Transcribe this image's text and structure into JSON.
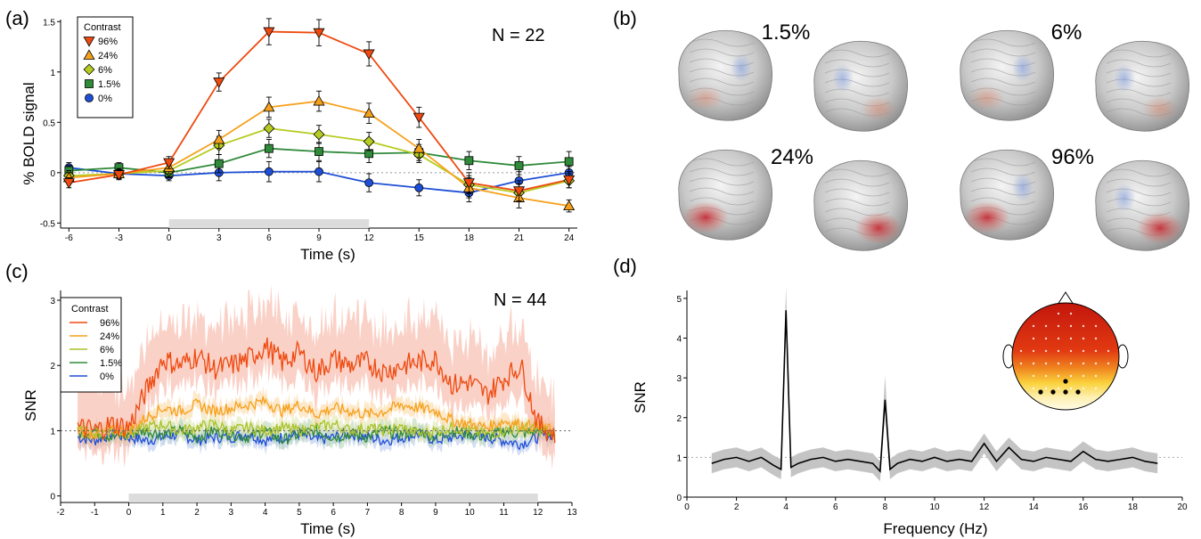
{
  "panels": {
    "a": {
      "label": "(a)",
      "n_label": "N = 22",
      "legend_title": "Contrast",
      "ylabel": "% BOLD signal",
      "xlabel": "Time (s)"
    },
    "b": {
      "label": "(b)",
      "contrast_labels": [
        "1.5%",
        "6%",
        "24%",
        "96%"
      ]
    },
    "c": {
      "label": "(c)",
      "n_label": "N = 44",
      "legend_title": "Contrast",
      "ylabel": "SNR",
      "xlabel": "Time (s)"
    },
    "d": {
      "label": "(d)",
      "ylabel": "SNR",
      "xlabel": "Frequency (Hz)"
    }
  },
  "chart_data": [
    {
      "panel": "a",
      "type": "line",
      "title": "",
      "xlabel": "Time (s)",
      "ylabel": "% BOLD signal",
      "xlim": [
        -6.5,
        24.5
      ],
      "ylim": [
        -0.55,
        1.52
      ],
      "xticks": [
        -6,
        -3,
        0,
        3,
        6,
        9,
        12,
        15,
        18,
        21,
        24
      ],
      "yticks": [
        -0.5,
        0,
        0.5,
        1,
        1.5
      ],
      "stimulus_period": [
        0,
        12
      ],
      "x": [
        -6,
        -3,
        0,
        3,
        6,
        9,
        12,
        15,
        18,
        21,
        24
      ],
      "series": [
        {
          "name": "96%",
          "color": "#ee4a10",
          "marker": "triangle-down",
          "values": [
            -0.1,
            -0.02,
            0.1,
            0.9,
            1.4,
            1.39,
            1.18,
            0.55,
            -0.1,
            -0.18,
            -0.07
          ],
          "errors": [
            0.05,
            0.05,
            0.06,
            0.09,
            0.13,
            0.13,
            0.12,
            0.1,
            0.1,
            0.1,
            0.08
          ]
        },
        {
          "name": "24%",
          "color": "#f6a11c",
          "marker": "triangle-up",
          "values": [
            -0.05,
            -0.01,
            0.05,
            0.33,
            0.65,
            0.71,
            0.59,
            0.24,
            -0.15,
            -0.25,
            -0.33
          ],
          "errors": [
            0.05,
            0.05,
            0.06,
            0.09,
            0.1,
            0.1,
            0.1,
            0.09,
            0.1,
            0.1,
            0.06
          ]
        },
        {
          "name": "6%",
          "color": "#b7cc22",
          "marker": "diamond",
          "values": [
            -0.03,
            -0.01,
            0.02,
            0.27,
            0.44,
            0.38,
            0.31,
            0.18,
            -0.12,
            -0.2,
            -0.08
          ],
          "errors": [
            0.05,
            0.05,
            0.06,
            0.09,
            0.09,
            0.09,
            0.09,
            0.08,
            0.09,
            0.09,
            0.07
          ]
        },
        {
          "name": "1.5%",
          "color": "#2f8a3a",
          "marker": "square",
          "values": [
            0.02,
            0.05,
            0.0,
            0.09,
            0.24,
            0.21,
            0.19,
            0.2,
            0.12,
            0.07,
            0.11
          ],
          "errors": [
            0.05,
            0.05,
            0.05,
            0.09,
            0.09,
            0.09,
            0.09,
            0.08,
            0.09,
            0.09,
            0.1
          ]
        },
        {
          "name": "0%",
          "color": "#1f4fd6",
          "marker": "circle",
          "values": [
            0.05,
            -0.01,
            -0.03,
            0.0,
            0.01,
            0.01,
            -0.1,
            -0.15,
            -0.2,
            -0.08,
            0.0
          ],
          "errors": [
            0.05,
            0.05,
            0.05,
            0.08,
            0.1,
            0.1,
            0.09,
            0.08,
            0.09,
            0.09,
            0.06
          ]
        }
      ]
    },
    {
      "panel": "c",
      "type": "line",
      "title": "",
      "xlabel": "Time (s)",
      "ylabel": "SNR",
      "xlim": [
        -2,
        13
      ],
      "ylim": [
        -0.1,
        3.15
      ],
      "xticks": [
        -2,
        -1,
        0,
        1,
        2,
        3,
        4,
        5,
        6,
        7,
        8,
        9,
        10,
        11,
        12,
        13
      ],
      "yticks": [
        0,
        1,
        2,
        3
      ],
      "stimulus_period": [
        0,
        12
      ],
      "x": [
        -1.5,
        -1,
        -0.5,
        0,
        0.5,
        1,
        1.5,
        2,
        2.5,
        3,
        3.5,
        4,
        4.5,
        5,
        5.5,
        6,
        6.5,
        7,
        7.5,
        8,
        8.5,
        9,
        9.5,
        10,
        10.5,
        11,
        11.5,
        12,
        12.5
      ],
      "series": [
        {
          "name": "96%",
          "color": "#ee4a10",
          "values": [
            1.05,
            1.0,
            1.1,
            1.05,
            1.6,
            2.1,
            2.0,
            2.15,
            1.95,
            2.0,
            2.1,
            2.3,
            2.05,
            2.2,
            1.9,
            2.1,
            2.0,
            2.05,
            1.9,
            2.0,
            2.05,
            2.1,
            1.7,
            1.75,
            1.55,
            1.8,
            2.0,
            1.1,
            0.95
          ],
          "band": 0.4
        },
        {
          "name": "24%",
          "color": "#f6a11c",
          "values": [
            1.0,
            0.95,
            1.0,
            1.0,
            1.2,
            1.35,
            1.3,
            1.4,
            1.3,
            1.35,
            1.4,
            1.45,
            1.3,
            1.4,
            1.25,
            1.35,
            1.3,
            1.25,
            1.3,
            1.4,
            1.35,
            1.3,
            1.15,
            1.1,
            1.05,
            1.15,
            1.1,
            1.05,
            1.0
          ],
          "band": 0.12
        },
        {
          "name": "6%",
          "color": "#a9c22a",
          "values": [
            1.0,
            0.95,
            1.0,
            0.95,
            1.05,
            1.1,
            1.0,
            1.05,
            1.1,
            1.0,
            1.05,
            1.0,
            1.05,
            1.0,
            1.05,
            1.1,
            1.0,
            1.05,
            1.0,
            1.05,
            0.95,
            1.0,
            1.05,
            1.0,
            0.95,
            1.0,
            1.05,
            1.0,
            0.95
          ],
          "band": 0.12
        },
        {
          "name": "1.5%",
          "color": "#2f8a3a",
          "values": [
            0.95,
            1.0,
            0.9,
            0.95,
            1.0,
            0.95,
            1.0,
            0.9,
            1.0,
            0.95,
            0.9,
            1.0,
            0.85,
            0.95,
            1.0,
            0.9,
            0.95,
            0.9,
            1.0,
            0.95,
            1.0,
            0.9,
            1.0,
            0.95,
            0.9,
            1.0,
            0.95,
            1.0,
            0.95
          ],
          "band": 0.12
        },
        {
          "name": "0%",
          "color": "#1f4fd6",
          "values": [
            0.9,
            0.85,
            0.95,
            0.9,
            0.85,
            0.9,
            0.95,
            0.85,
            0.9,
            0.9,
            0.95,
            0.85,
            0.9,
            0.95,
            0.85,
            0.9,
            0.95,
            0.9,
            0.85,
            0.9,
            0.95,
            0.85,
            0.9,
            0.95,
            0.9,
            0.85,
            0.8,
            0.9,
            0.95
          ],
          "band": 0.12
        }
      ],
      "reference_line": 1
    },
    {
      "panel": "d",
      "type": "line",
      "title": "",
      "xlabel": "Frequency (Hz)",
      "ylabel": "SNR",
      "xlim": [
        0,
        20
      ],
      "ylim": [
        0,
        5.2
      ],
      "xticks": [
        0,
        2,
        4,
        6,
        8,
        10,
        12,
        14,
        16,
        18,
        20
      ],
      "yticks": [
        0,
        1,
        2,
        3,
        4,
        5
      ],
      "reference_line": 1,
      "x": [
        1,
        1.5,
        2,
        2.5,
        3,
        3.5,
        3.8,
        4,
        4.2,
        4.5,
        5,
        5.5,
        6,
        6.5,
        7,
        7.5,
        7.8,
        8,
        8.2,
        8.5,
        9,
        9.5,
        10,
        10.5,
        11,
        11.5,
        12,
        12.5,
        13,
        13.5,
        14,
        14.5,
        15,
        15.5,
        16,
        16.5,
        17,
        17.5,
        18,
        18.5,
        19
      ],
      "values": [
        0.85,
        0.95,
        1.0,
        0.9,
        1.0,
        0.8,
        0.7,
        4.7,
        0.75,
        0.85,
        0.95,
        1.0,
        0.9,
        0.95,
        0.9,
        0.85,
        0.65,
        2.45,
        0.7,
        0.85,
        0.95,
        0.9,
        1.0,
        0.9,
        0.95,
        0.9,
        1.35,
        0.9,
        1.25,
        0.95,
        0.9,
        1.0,
        0.95,
        0.9,
        1.15,
        0.95,
        0.9,
        0.95,
        1.0,
        0.9,
        0.85
      ],
      "band": 0.25
    }
  ]
}
